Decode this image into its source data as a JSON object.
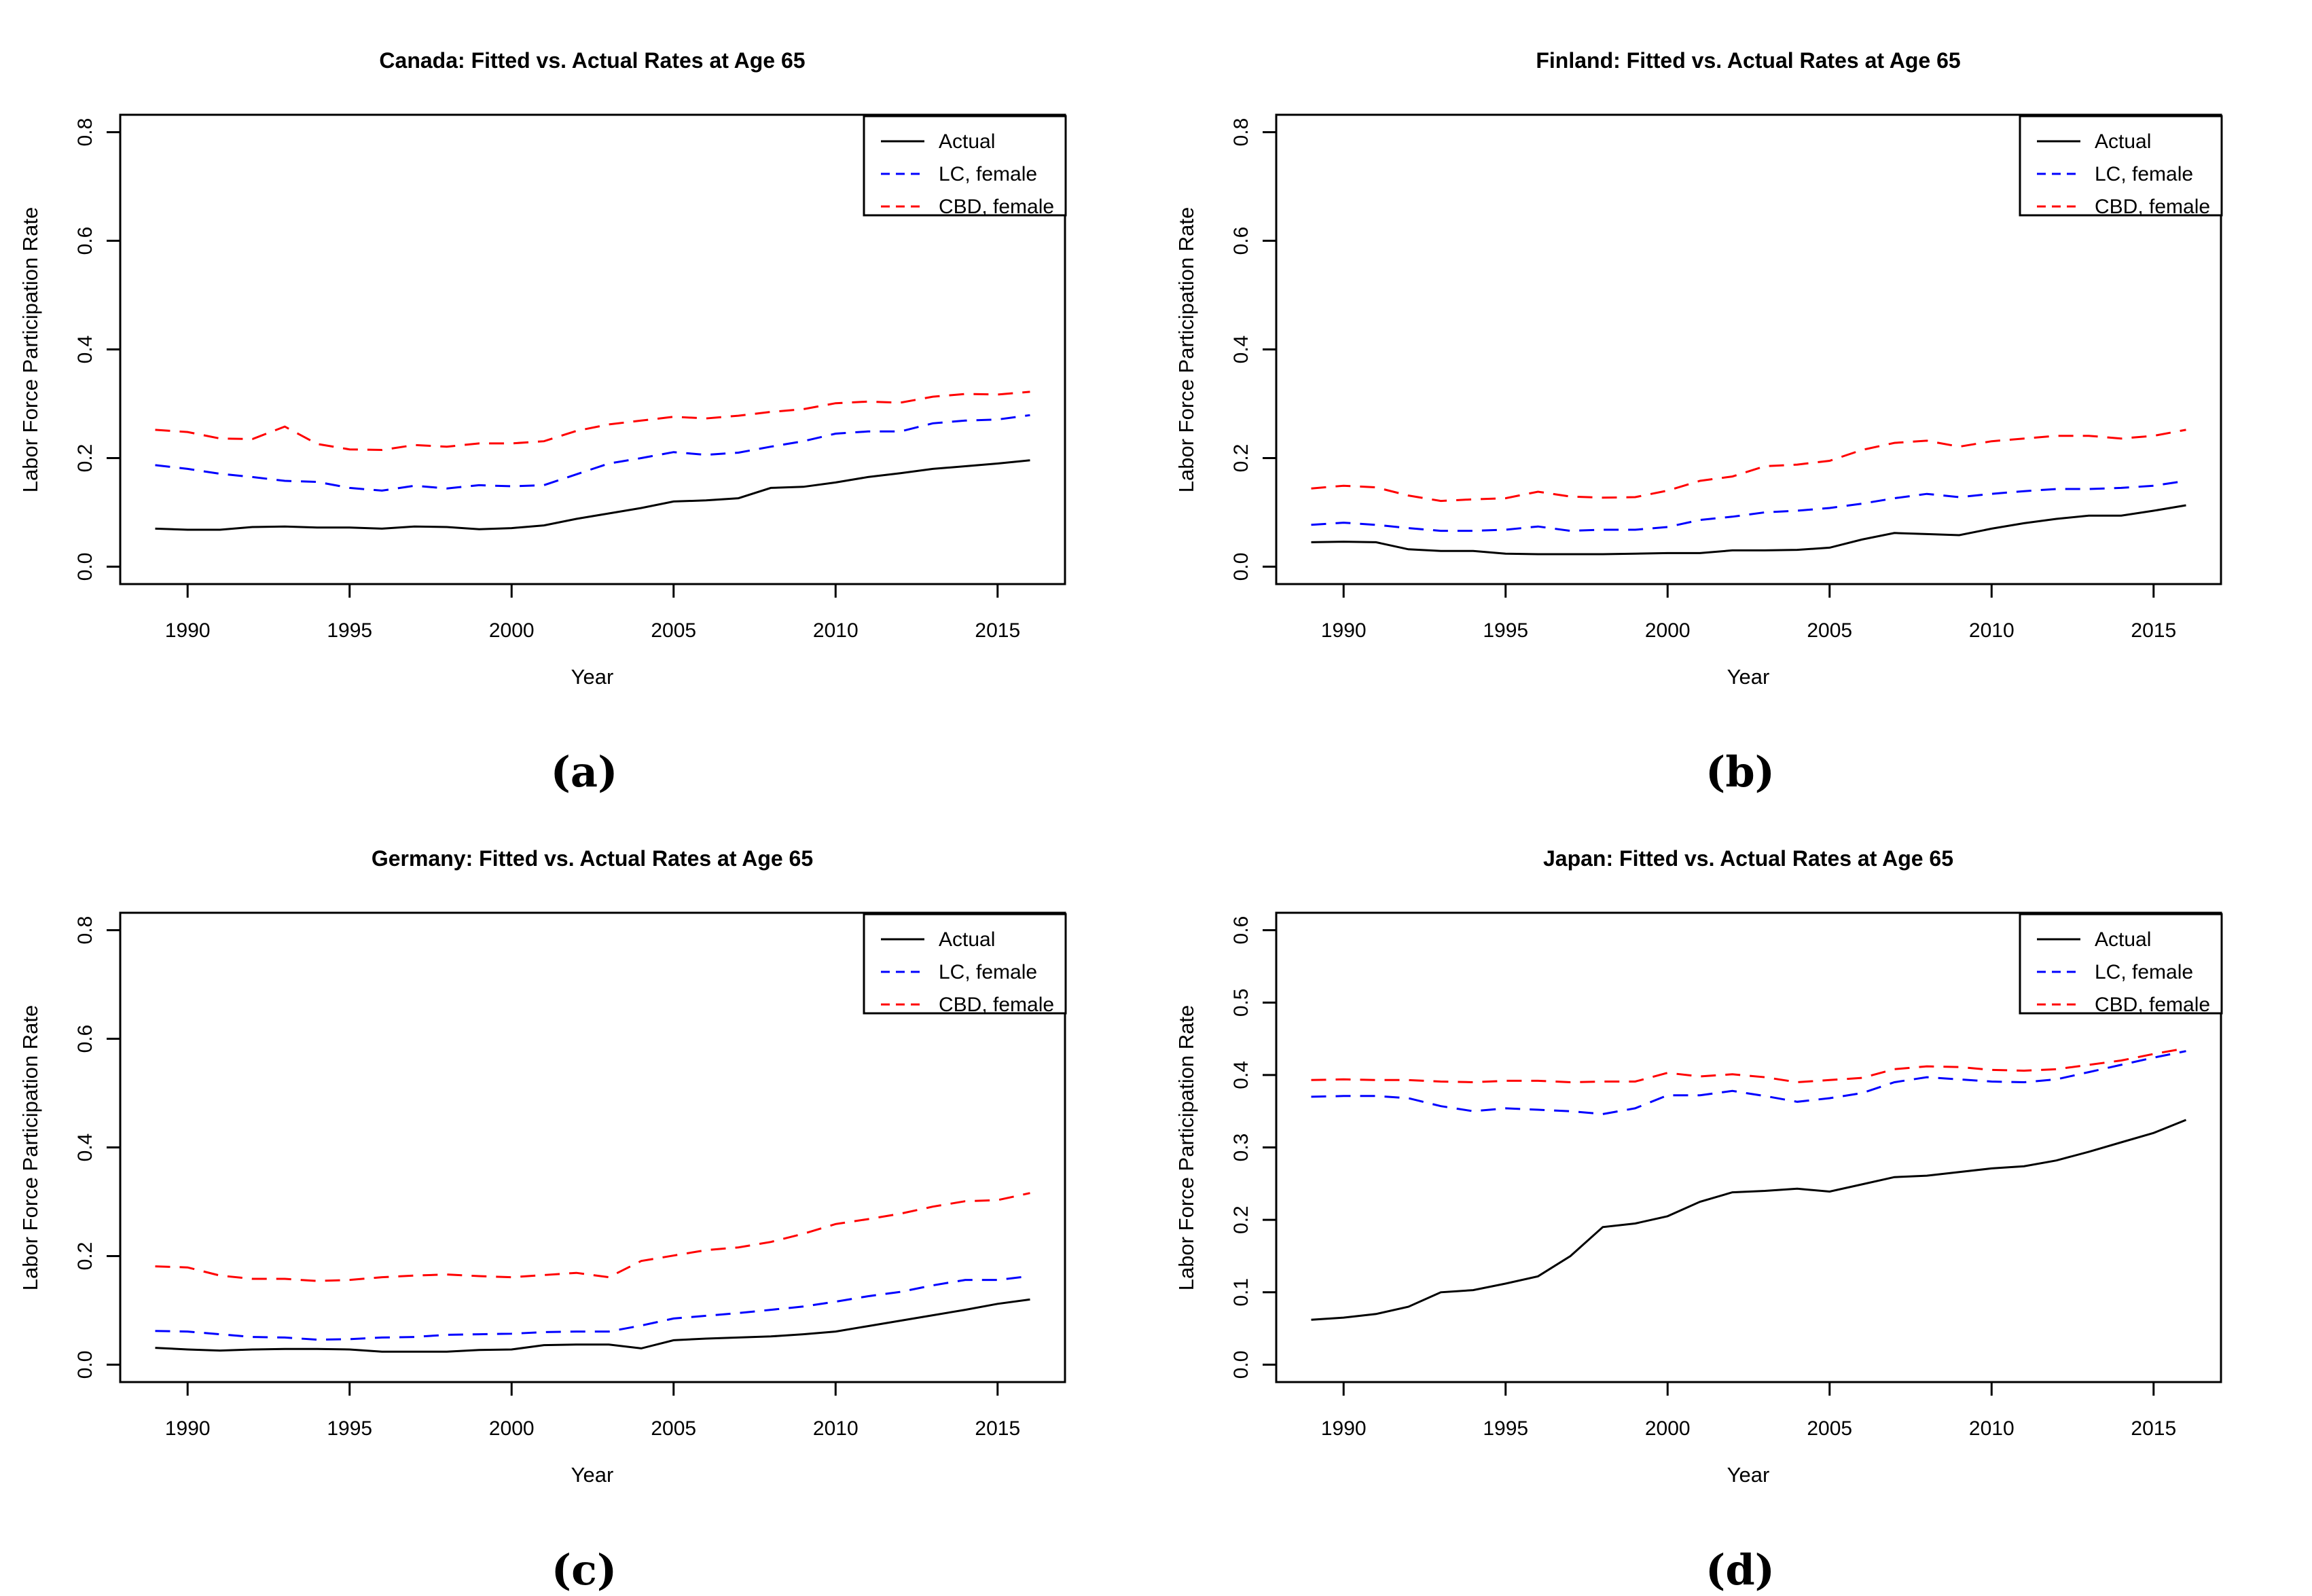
{
  "figure": {
    "background": "#ffffff",
    "series_colors": {
      "actual": "#000000",
      "lc_female": "#0000FF",
      "cbd_female": "#FF0000"
    }
  },
  "chart_data": [
    {
      "type": "line",
      "title": "Canada: Fitted vs. Actual Rates at Age 65",
      "xlabel": "Year",
      "ylabel": "Labor Force Participation Rate",
      "caption": "(a)",
      "grid": false,
      "legend_position": "top-right",
      "xlim": [
        1989,
        2016
      ],
      "ylim": [
        0,
        0.8
      ],
      "xticks": [
        1990,
        1995,
        2000,
        2005,
        2010,
        2015
      ],
      "yticks": [
        0,
        0.2,
        0.4,
        0.6,
        0.8
      ],
      "years": [
        1989,
        1990,
        1991,
        1992,
        1993,
        1994,
        1995,
        1996,
        1997,
        1998,
        1999,
        2000,
        2001,
        2002,
        2003,
        2004,
        2005,
        2006,
        2007,
        2008,
        2009,
        2010,
        2011,
        2012,
        2013,
        2014,
        2015,
        2016
      ],
      "series": [
        {
          "name": "Actual",
          "color": "#000000",
          "dashed": false,
          "values": [
            0.07,
            0.068,
            0.068,
            0.073,
            0.074,
            0.072,
            0.072,
            0.07,
            0.074,
            0.073,
            0.069,
            0.071,
            0.076,
            0.088,
            0.098,
            0.108,
            0.12,
            0.122,
            0.126,
            0.145,
            0.147,
            0.155,
            0.165,
            0.172,
            0.18,
            0.185,
            0.19,
            0.196
          ]
        },
        {
          "name": "LC, female",
          "color": "#0000FF",
          "dashed": true,
          "values": [
            0.187,
            0.18,
            0.171,
            0.165,
            0.158,
            0.156,
            0.145,
            0.14,
            0.149,
            0.144,
            0.15,
            0.148,
            0.15,
            0.17,
            0.19,
            0.2,
            0.211,
            0.206,
            0.21,
            0.221,
            0.231,
            0.245,
            0.249,
            0.249,
            0.264,
            0.269,
            0.271,
            0.279
          ]
        },
        {
          "name": "CBD, female",
          "color": "#FF0000",
          "dashed": true,
          "values": [
            0.252,
            0.248,
            0.236,
            0.235,
            0.258,
            0.226,
            0.216,
            0.215,
            0.224,
            0.221,
            0.227,
            0.227,
            0.231,
            0.25,
            0.262,
            0.269,
            0.276,
            0.273,
            0.278,
            0.285,
            0.29,
            0.301,
            0.304,
            0.302,
            0.313,
            0.318,
            0.317,
            0.322
          ]
        }
      ]
    },
    {
      "type": "line",
      "title": "Finland: Fitted vs. Actual Rates at Age 65",
      "xlabel": "Year",
      "ylabel": "Labor Force Participation Rate",
      "caption": "(b)",
      "grid": false,
      "legend_position": "top-right",
      "xlim": [
        1989,
        2016
      ],
      "ylim": [
        0,
        0.8
      ],
      "xticks": [
        1990,
        1995,
        2000,
        2005,
        2010,
        2015
      ],
      "yticks": [
        0,
        0.2,
        0.4,
        0.6,
        0.8
      ],
      "years": [
        1989,
        1990,
        1991,
        1992,
        1993,
        1994,
        1995,
        1996,
        1997,
        1998,
        1999,
        2000,
        2001,
        2002,
        2003,
        2004,
        2005,
        2006,
        2007,
        2008,
        2009,
        2010,
        2011,
        2012,
        2013,
        2014,
        2015,
        2016
      ],
      "series": [
        {
          "name": "Actual",
          "color": "#000000",
          "dashed": false,
          "values": [
            0.045,
            0.046,
            0.045,
            0.032,
            0.029,
            0.029,
            0.024,
            0.023,
            0.023,
            0.023,
            0.024,
            0.025,
            0.025,
            0.03,
            0.03,
            0.031,
            0.035,
            0.05,
            0.062,
            0.06,
            0.058,
            0.07,
            0.08,
            0.088,
            0.094,
            0.094,
            0.103,
            0.113
          ]
        },
        {
          "name": "LC, female",
          "color": "#0000FF",
          "dashed": true,
          "values": [
            0.077,
            0.081,
            0.077,
            0.071,
            0.066,
            0.066,
            0.068,
            0.074,
            0.066,
            0.068,
            0.068,
            0.073,
            0.086,
            0.092,
            0.1,
            0.103,
            0.108,
            0.116,
            0.126,
            0.134,
            0.128,
            0.134,
            0.139,
            0.143,
            0.143,
            0.145,
            0.149,
            0.158
          ]
        },
        {
          "name": "CBD, female",
          "color": "#FF0000",
          "dashed": true,
          "values": [
            0.144,
            0.149,
            0.146,
            0.131,
            0.121,
            0.124,
            0.126,
            0.138,
            0.129,
            0.127,
            0.128,
            0.14,
            0.158,
            0.166,
            0.185,
            0.188,
            0.195,
            0.215,
            0.228,
            0.232,
            0.221,
            0.231,
            0.236,
            0.241,
            0.241,
            0.236,
            0.241,
            0.252
          ]
        }
      ]
    },
    {
      "type": "line",
      "title": "Germany: Fitted vs. Actual Rates at Age 65",
      "xlabel": "Year",
      "ylabel": "Labor Force Participation Rate",
      "caption": "(c)",
      "grid": false,
      "legend_position": "top-right",
      "xlim": [
        1989,
        2016
      ],
      "ylim": [
        0,
        0.8
      ],
      "xticks": [
        1990,
        1995,
        2000,
        2005,
        2010,
        2015
      ],
      "yticks": [
        0,
        0.2,
        0.4,
        0.6,
        0.8
      ],
      "years": [
        1989,
        1990,
        1991,
        1992,
        1993,
        1994,
        1995,
        1996,
        1997,
        1998,
        1999,
        2000,
        2001,
        2002,
        2003,
        2004,
        2005,
        2006,
        2007,
        2008,
        2009,
        2010,
        2011,
        2012,
        2013,
        2014,
        2015,
        2016
      ],
      "series": [
        {
          "name": "Actual",
          "color": "#000000",
          "dashed": false,
          "values": [
            0.031,
            0.028,
            0.026,
            0.028,
            0.029,
            0.029,
            0.028,
            0.024,
            0.024,
            0.024,
            0.027,
            0.028,
            0.036,
            0.037,
            0.037,
            0.03,
            0.045,
            0.048,
            0.05,
            0.052,
            0.056,
            0.061,
            0.071,
            0.081,
            0.091,
            0.101,
            0.112,
            0.12
          ]
        },
        {
          "name": "LC, female",
          "color": "#0000FF",
          "dashed": true,
          "values": [
            0.062,
            0.061,
            0.056,
            0.051,
            0.05,
            0.046,
            0.047,
            0.05,
            0.051,
            0.055,
            0.056,
            0.057,
            0.06,
            0.061,
            0.061,
            0.072,
            0.085,
            0.09,
            0.095,
            0.101,
            0.107,
            0.116,
            0.126,
            0.134,
            0.146,
            0.156,
            0.156,
            0.163
          ]
        },
        {
          "name": "CBD, female",
          "color": "#FF0000",
          "dashed": true,
          "values": [
            0.181,
            0.179,
            0.164,
            0.158,
            0.158,
            0.154,
            0.156,
            0.161,
            0.164,
            0.166,
            0.163,
            0.161,
            0.165,
            0.169,
            0.161,
            0.191,
            0.201,
            0.211,
            0.216,
            0.226,
            0.241,
            0.259,
            0.268,
            0.278,
            0.291,
            0.301,
            0.303,
            0.316
          ]
        }
      ]
    },
    {
      "type": "line",
      "title": "Japan: Fitted vs. Actual Rates at Age 65",
      "xlabel": "Year",
      "ylabel": "Labor Force Participation Rate",
      "caption": "(d)",
      "grid": false,
      "legend_position": "top-right",
      "xlim": [
        1989,
        2016
      ],
      "ylim": [
        0,
        0.6
      ],
      "xticks": [
        1990,
        1995,
        2000,
        2005,
        2010,
        2015
      ],
      "yticks": [
        0,
        0.1,
        0.2,
        0.3,
        0.4,
        0.5,
        0.6
      ],
      "years": [
        1989,
        1990,
        1991,
        1992,
        1993,
        1994,
        1995,
        1996,
        1997,
        1998,
        1999,
        2000,
        2001,
        2002,
        2003,
        2004,
        2005,
        2006,
        2007,
        2008,
        2009,
        2010,
        2011,
        2012,
        2013,
        2014,
        2015,
        2016
      ],
      "series": [
        {
          "name": "Actual",
          "color": "#000000",
          "dashed": false,
          "values": [
            0.062,
            0.065,
            0.07,
            0.08,
            0.1,
            0.103,
            0.112,
            0.122,
            0.15,
            0.19,
            0.195,
            0.205,
            0.225,
            0.238,
            0.24,
            0.243,
            0.239,
            0.249,
            0.259,
            0.261,
            0.266,
            0.271,
            0.274,
            0.282,
            0.294,
            0.307,
            0.32,
            0.338
          ]
        },
        {
          "name": "LC, female",
          "color": "#0000FF",
          "dashed": true,
          "values": [
            0.37,
            0.371,
            0.371,
            0.368,
            0.357,
            0.35,
            0.354,
            0.352,
            0.35,
            0.346,
            0.354,
            0.372,
            0.372,
            0.378,
            0.371,
            0.363,
            0.368,
            0.375,
            0.39,
            0.397,
            0.394,
            0.391,
            0.39,
            0.394,
            0.404,
            0.414,
            0.424,
            0.433
          ]
        },
        {
          "name": "CBD, female",
          "color": "#FF0000",
          "dashed": true,
          "values": [
            0.393,
            0.394,
            0.393,
            0.393,
            0.391,
            0.39,
            0.392,
            0.392,
            0.39,
            0.391,
            0.391,
            0.403,
            0.398,
            0.401,
            0.397,
            0.39,
            0.393,
            0.396,
            0.408,
            0.412,
            0.411,
            0.407,
            0.406,
            0.408,
            0.414,
            0.42,
            0.429,
            0.437
          ]
        }
      ]
    }
  ]
}
